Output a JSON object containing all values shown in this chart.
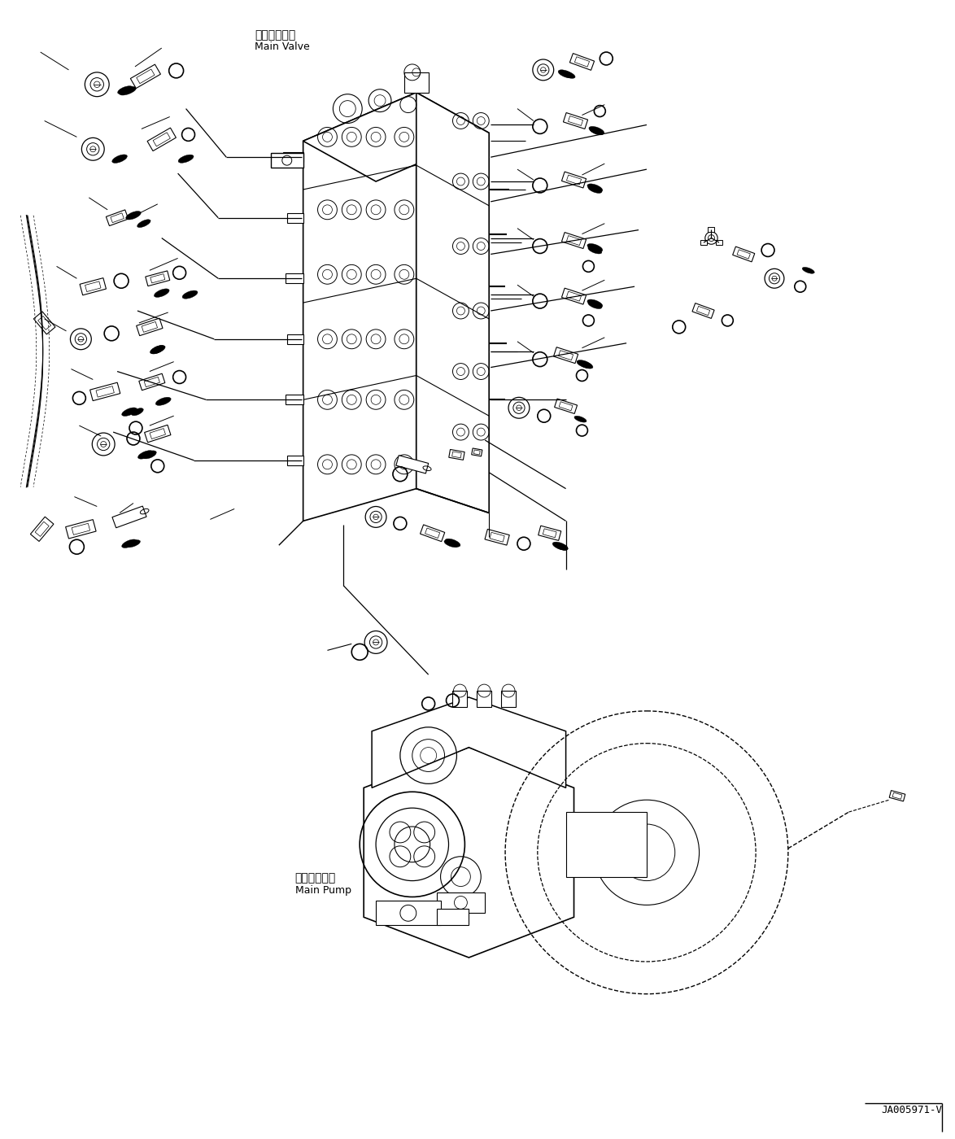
{
  "bg_color": "#ffffff",
  "line_color": "#000000",
  "text_color": "#000000",
  "main_valve_label_jp": "メインバルブ",
  "main_valve_label_en": "Main Valve",
  "main_pump_label_jp": "メインポンプ",
  "main_pump_label_en": "Main Pump",
  "ref_number": "JA005971-V",
  "figsize": [
    11.74,
    14.0
  ],
  "dpi": 100
}
